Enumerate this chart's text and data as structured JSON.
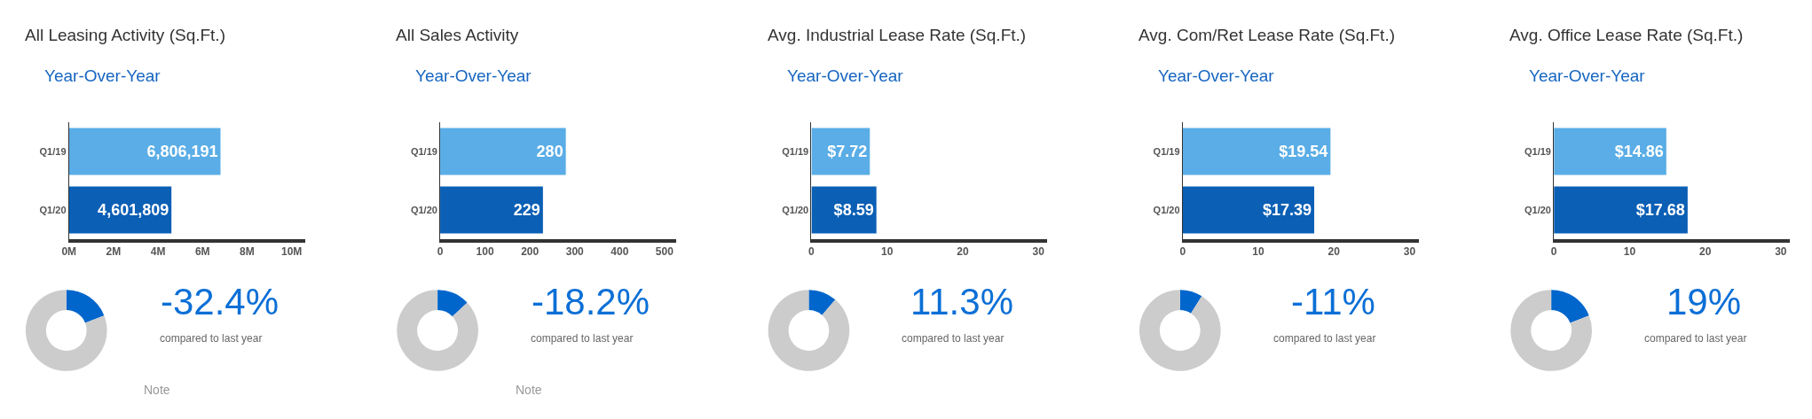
{
  "chart_data": [
    {
      "type": "bar",
      "orientation": "horizontal",
      "title": "All Leasing Activity (Sq.Ft.)",
      "subtitle": "Year-Over-Year",
      "categories": [
        "Q1/19",
        "Q1/20"
      ],
      "values": [
        6806191,
        4601809
      ],
      "colors": [
        "#5aade6",
        "#0b5fb5"
      ],
      "value_labels": [
        "6,806,191",
        "4,601,809"
      ],
      "xlim": [
        0,
        10600000
      ],
      "xticks": [
        {
          "value": 0,
          "label": "0M"
        },
        {
          "value": 2000000,
          "label": "2M"
        },
        {
          "value": 4000000,
          "label": "4M"
        },
        {
          "value": 6000000,
          "label": "6M"
        },
        {
          "value": 8000000,
          "label": "8M"
        },
        {
          "value": 10000000,
          "label": "10M"
        }
      ]
    },
    {
      "type": "donut",
      "categories": [
        null,
        null
      ],
      "values": [
        19,
        81
      ],
      "colors": [
        "#0066cc",
        "#cccccc"
      ],
      "annotations": [
        "-32.4%",
        "compared to last year",
        "Note"
      ]
    },
    {
      "type": "bar",
      "orientation": "horizontal",
      "title": "All Sales Activity",
      "subtitle": "Year-Over-Year",
      "categories": [
        "Q1/19",
        "Q1/20"
      ],
      "values": [
        280,
        229
      ],
      "colors": [
        "#5aade6",
        "#0b5fb5"
      ],
      "data_labels": true,
      "xlim": [
        0,
        526
      ],
      "xticks": [
        0,
        100,
        200,
        300,
        400,
        500
      ]
    },
    {
      "type": "donut",
      "categories": [
        null,
        null
      ],
      "values": [
        13,
        87
      ],
      "colors": [
        "#0066cc",
        "#cccccc"
      ],
      "annotations": [
        "-18.2%",
        "compared to last year",
        "Note"
      ]
    },
    {
      "type": "bar",
      "orientation": "horizontal",
      "title": "Avg. Industrial Lease Rate (Sq.Ft.)",
      "subtitle": "Year-Over-Year",
      "categories": [
        "Q1/19",
        "Q1/20"
      ],
      "values": [
        7.72,
        8.59
      ],
      "colors": [
        "#5aade6",
        "#0b5fb5"
      ],
      "value_labels": [
        "$7.72",
        "$8.59"
      ],
      "xlim": [
        0,
        31.2
      ],
      "xticks": [
        0,
        10,
        20,
        30
      ]
    },
    {
      "type": "donut",
      "categories": [
        null,
        null
      ],
      "values": [
        11.3,
        88.7
      ],
      "colors": [
        "#0066cc",
        "#cccccc"
      ],
      "annotations": [
        "11.3%",
        "compared to last year"
      ]
    },
    {
      "type": "bar",
      "orientation": "horizontal",
      "title": "Avg. Com/Ret Lease Rate (Sq.Ft.)",
      "subtitle": "Year-Over-Year",
      "categories": [
        "Q1/19",
        "Q1/20"
      ],
      "values": [
        19.54,
        17.39
      ],
      "colors": [
        "#5aade6",
        "#0b5fb5"
      ],
      "value_labels": [
        "$19.54",
        "$17.39"
      ],
      "xlim": [
        0,
        31.2
      ],
      "xticks": [
        0,
        10,
        20,
        30
      ]
    },
    {
      "type": "donut",
      "categories": [
        null,
        null
      ],
      "values": [
        9,
        91
      ],
      "colors": [
        "#0066cc",
        "#cccccc"
      ],
      "annotations": [
        "-11%",
        "compared to last year"
      ]
    },
    {
      "type": "bar",
      "orientation": "horizontal",
      "title": "Avg. Office Lease Rate (Sq.Ft.)",
      "subtitle": "Year-Over-Year",
      "categories": [
        "Q1/19",
        "Q1/20"
      ],
      "values": [
        14.86,
        17.68
      ],
      "colors": [
        "#5aade6",
        "#0b5fb5"
      ],
      "value_labels": [
        "$14.86",
        "$17.68"
      ],
      "xlim": [
        0,
        31.2
      ],
      "xticks": [
        0,
        10,
        20,
        30
      ]
    },
    {
      "type": "donut",
      "categories": [
        null,
        null
      ],
      "values": [
        19,
        81
      ],
      "colors": [
        "#0066cc",
        "#cccccc"
      ],
      "annotations": [
        "19%",
        "compared to last year"
      ]
    }
  ]
}
